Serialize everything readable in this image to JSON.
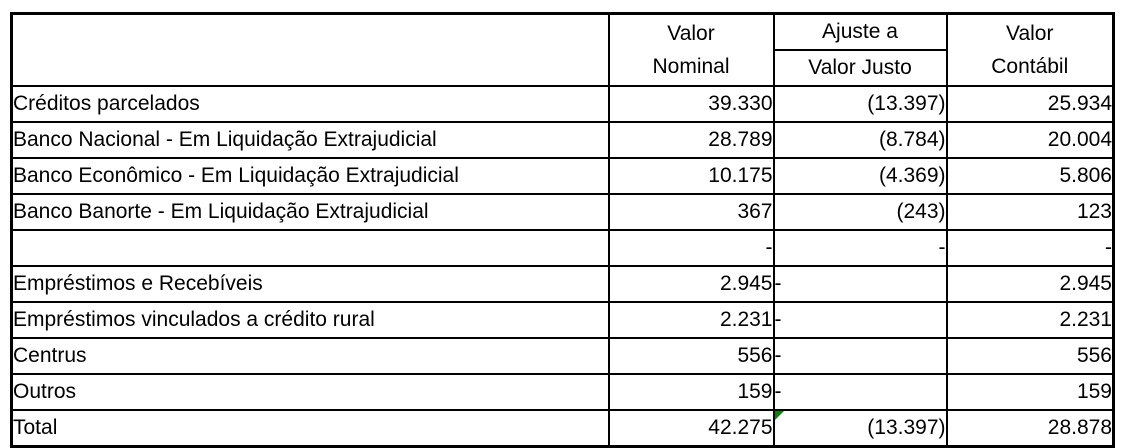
{
  "table": {
    "header": {
      "label": "",
      "col_nominal": {
        "line1": "Valor",
        "line2": "Nominal"
      },
      "col_ajuste": {
        "line1": "Ajuste a",
        "line2": "Valor Justo"
      },
      "col_contabil": {
        "line1": "Valor",
        "line2": "Contábil"
      }
    },
    "rows": [
      {
        "label": "Créditos parcelados",
        "nominal": "39.330",
        "ajuste": "(13.397)",
        "contabil": "25.934"
      },
      {
        "label": "Banco Nacional - Em Liquidação Extrajudicial",
        "nominal": "28.789",
        "ajuste": "(8.784)",
        "contabil": "20.004"
      },
      {
        "label": "Banco Econômico - Em Liquidação Extrajudicial",
        "nominal": "10.175",
        "ajuste": "(4.369)",
        "contabil": "5.806"
      },
      {
        "label": "Banco Banorte - Em Liquidação Extrajudicial",
        "nominal": "367",
        "ajuste": "(243)",
        "contabil": "123"
      },
      {
        "label": "",
        "nominal": "-",
        "ajuste": "-",
        "contabil": "-"
      },
      {
        "label": "Empréstimos e Recebíveis",
        "nominal": "2.945",
        "ajuste": "-",
        "contabil": "2.945"
      },
      {
        "label": "Empréstimos vinculados a crédito rural",
        "nominal": "2.231",
        "ajuste": "-",
        "contabil": "2.231"
      },
      {
        "label": "Centrus",
        "nominal": "556",
        "ajuste": "-",
        "contabil": "556"
      },
      {
        "label": "Outros",
        "nominal": "159",
        "ajuste": "-",
        "contabil": "159"
      },
      {
        "label": "Total",
        "nominal": "42.275",
        "ajuste": "(13.397)",
        "contabil": "28.878"
      }
    ]
  },
  "icons": {
    "error_indicator": "green-corner-triangle"
  },
  "colors": {
    "border": "#000000",
    "background": "#ffffff",
    "error_marker": "#068406"
  }
}
